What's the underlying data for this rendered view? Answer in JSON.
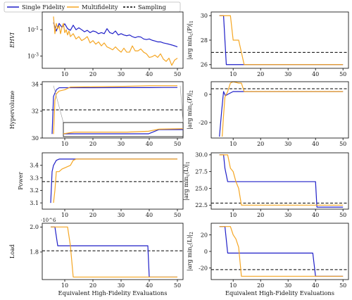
{
  "legend": {
    "entries": [
      {
        "label": "Single Fidelity",
        "color": "#1f1fc8",
        "style": "solid"
      },
      {
        "label": "Multifidelity",
        "color": "#f5a623",
        "style": "solid"
      },
      {
        "label": "Sampling",
        "color": "#000000",
        "style": "dashed"
      }
    ]
  },
  "colors": {
    "single": "#1f1fc8",
    "multi": "#f5a623",
    "sampling": "#000000"
  },
  "chart_data": [
    {
      "id": "ehvi",
      "type": "line",
      "ylabel": "EHVI",
      "yscale": "log",
      "xlim": [
        2,
        52
      ],
      "ylim": [
        0.00012,
        2.2
      ],
      "yticks": [
        {
          "v": 0.1,
          "label": "10^{-1}"
        },
        {
          "v": 0.001,
          "label": "10^{-3}"
        }
      ],
      "xticks": [
        {
          "v": 10,
          "label": "10"
        },
        {
          "v": 20,
          "label": "20"
        },
        {
          "v": 30,
          "label": "30"
        },
        {
          "v": 40,
          "label": "40"
        },
        {
          "v": 50,
          "label": "50"
        }
      ],
      "series": [
        {
          "name": "Single Fidelity",
          "color": "#1f1fc8",
          "x": [
            6,
            7,
            8,
            9,
            10,
            11,
            12,
            13,
            14,
            15,
            16,
            17,
            18,
            19,
            20,
            21,
            22,
            23,
            24,
            25,
            26,
            27,
            28,
            29,
            30,
            31,
            32,
            33,
            34,
            35,
            36,
            37,
            38,
            39,
            40,
            41,
            42,
            43,
            44,
            45,
            46,
            47,
            48,
            49,
            50
          ],
          "y": [
            0.35,
            0.08,
            0.3,
            0.15,
            0.28,
            0.12,
            0.09,
            0.22,
            0.1,
            0.14,
            0.1,
            0.07,
            0.09,
            0.06,
            0.08,
            0.07,
            0.05,
            0.06,
            0.05,
            0.12,
            0.06,
            0.05,
            0.08,
            0.04,
            0.05,
            0.04,
            0.035,
            0.04,
            0.03,
            0.025,
            0.03,
            0.028,
            0.02,
            0.018,
            0.02,
            0.016,
            0.014,
            0.012,
            0.012,
            0.01,
            0.009,
            0.008,
            0.007,
            0.006,
            0.005
          ]
        },
        {
          "name": "Multifidelity",
          "color": "#f5a623",
          "x": [
            6,
            6.5,
            7,
            7.5,
            8,
            8.5,
            9,
            9.5,
            10,
            10.5,
            11,
            11.5,
            12,
            13,
            14,
            15,
            16,
            17,
            18,
            19,
            20,
            21,
            22,
            23,
            24,
            25,
            26,
            27,
            28,
            29,
            30,
            31,
            32,
            33,
            34,
            35,
            36,
            37,
            38,
            39,
            40,
            41,
            42,
            43,
            44,
            45,
            46,
            47,
            48,
            49,
            50
          ],
          "y": [
            1.0,
            0.05,
            0.3,
            0.12,
            0.2,
            0.05,
            0.15,
            0.3,
            0.06,
            0.1,
            0.04,
            0.08,
            0.03,
            0.05,
            0.02,
            0.03,
            0.015,
            0.02,
            0.03,
            0.01,
            0.015,
            0.008,
            0.012,
            0.006,
            0.01,
            0.005,
            0.004,
            0.003,
            0.005,
            0.003,
            0.002,
            0.004,
            0.002,
            0.002,
            0.006,
            0.0025,
            0.0025,
            0.0035,
            0.002,
            0.0015,
            0.0008,
            0.0009,
            0.0012,
            0.0008,
            0.0015,
            0.0006,
            0.0004,
            0.0007,
            0.0002,
            0.0005,
            0.0007
          ]
        }
      ]
    },
    {
      "id": "pos1",
      "type": "line",
      "ylabel": "|argmin_c(P)|_1",
      "xlim": [
        2,
        52
      ],
      "ylim": [
        25.7,
        30.3
      ],
      "yticks": [
        {
          "v": 26,
          "label": "26"
        },
        {
          "v": 28,
          "label": "28"
        },
        {
          "v": 30,
          "label": "30"
        }
      ],
      "xticks": [
        {
          "v": 10,
          "label": "10"
        },
        {
          "v": 20,
          "label": "20"
        },
        {
          "v": 30,
          "label": "30"
        },
        {
          "v": 40,
          "label": "40"
        },
        {
          "v": 50,
          "label": "50"
        }
      ],
      "sampling": 27,
      "series": [
        {
          "name": "Single Fidelity",
          "color": "#1f1fc8",
          "x": [
            5,
            6.5,
            7.5,
            50
          ],
          "y": [
            30,
            30,
            26,
            26
          ]
        },
        {
          "name": "Multifidelity",
          "color": "#f5a623",
          "x": [
            5,
            9,
            10,
            11,
            12,
            13,
            14,
            50
          ],
          "y": [
            30,
            30,
            28,
            28,
            28,
            27,
            26,
            26
          ]
        }
      ]
    },
    {
      "id": "hv",
      "type": "line",
      "ylabel": "Hypervolume",
      "xlim": [
        2,
        52
      ],
      "ylim": [
        30.0,
        34.2
      ],
      "yticks": [
        {
          "v": 30,
          "label": "30"
        },
        {
          "v": 32,
          "label": "32"
        },
        {
          "v": 34,
          "label": "34"
        }
      ],
      "xticks": [
        {
          "v": 10,
          "label": "10"
        },
        {
          "v": 20,
          "label": "20"
        },
        {
          "v": 30,
          "label": "30"
        },
        {
          "v": 40,
          "label": "40"
        },
        {
          "v": 50,
          "label": "50"
        }
      ],
      "sampling": 32.1,
      "series": [
        {
          "name": "Single Fidelity",
          "color": "#1f1fc8",
          "x": [
            5.5,
            6,
            7,
            8,
            9,
            10,
            20,
            30,
            40,
            45,
            50
          ],
          "y": [
            30.3,
            33.1,
            33.6,
            33.75,
            33.75,
            33.75,
            33.75,
            33.76,
            33.76,
            33.77,
            33.77
          ]
        },
        {
          "name": "Multifidelity",
          "color": "#f5a623",
          "x": [
            6,
            6.5,
            7,
            8,
            10,
            12,
            20,
            30,
            40,
            50
          ],
          "y": [
            30.3,
            32.8,
            33.3,
            33.5,
            33.6,
            33.8,
            33.82,
            33.85,
            33.9,
            33.9
          ]
        }
      ],
      "inset": {
        "xlim": [
          6,
          51
        ],
        "single": {
          "x": [
            6,
            38,
            42,
            51
          ],
          "y": [
            0,
            0,
            0.5,
            0.5
          ]
        },
        "multi": {
          "x": [
            6,
            10,
            20,
            30,
            38,
            42,
            51
          ],
          "y": [
            0,
            0.2,
            0.2,
            0.2,
            0.3,
            0.55,
            0.6
          ]
        }
      }
    },
    {
      "id": "pos2",
      "type": "line",
      "ylabel": "|argmin_c(P)|_2",
      "xlim": [
        2,
        52
      ],
      "ylim": [
        -31,
        9
      ],
      "yticks": [
        {
          "v": 0,
          "label": "0"
        },
        {
          "v": -20,
          "label": "-20"
        }
      ],
      "xticks": [
        {
          "v": 10,
          "label": "10"
        },
        {
          "v": 20,
          "label": "20"
        },
        {
          "v": 30,
          "label": "30"
        },
        {
          "v": 40,
          "label": "40"
        },
        {
          "v": 50,
          "label": "50"
        }
      ],
      "sampling": 4,
      "series": [
        {
          "name": "Single Fidelity",
          "color": "#1f1fc8",
          "x": [
            5,
            5.8,
            6.5,
            7.2,
            8,
            9,
            10,
            50
          ],
          "y": [
            -30,
            -12,
            2,
            -1,
            0,
            1,
            2,
            2
          ]
        },
        {
          "name": "Multifidelity",
          "color": "#f5a623",
          "x": [
            6,
            6.5,
            7,
            8,
            9,
            10,
            12,
            13,
            14,
            15,
            50
          ],
          "y": [
            -30,
            -15,
            -2,
            2,
            8,
            9,
            8,
            8,
            2,
            2,
            2
          ]
        }
      ]
    },
    {
      "id": "power",
      "type": "line",
      "ylabel": "Power",
      "xlim": [
        2,
        52
      ],
      "ylim": [
        3.05,
        3.5
      ],
      "yticks": [
        {
          "v": 3.1,
          "label": "3.1"
        },
        {
          "v": 3.2,
          "label": "3.2"
        },
        {
          "v": 3.3,
          "label": "3.3"
        },
        {
          "v": 3.4,
          "label": "3.4"
        }
      ],
      "xticks": [
        {
          "v": 10,
          "label": "10"
        },
        {
          "v": 20,
          "label": "20"
        },
        {
          "v": 30,
          "label": "30"
        },
        {
          "v": 40,
          "label": "40"
        },
        {
          "v": 50,
          "label": "50"
        }
      ],
      "sampling": 3.27,
      "series": [
        {
          "name": "Single Fidelity",
          "color": "#1f1fc8",
          "x": [
            5,
            5.5,
            6,
            7,
            8,
            50
          ],
          "y": [
            3.1,
            3.35,
            3.4,
            3.44,
            3.45,
            3.45
          ]
        },
        {
          "name": "Multifidelity",
          "color": "#f5a623",
          "x": [
            6,
            6.5,
            7,
            8,
            9,
            10,
            11,
            12,
            13,
            14,
            50
          ],
          "y": [
            3.1,
            3.2,
            3.35,
            3.35,
            3.37,
            3.38,
            3.39,
            3.4,
            3.44,
            3.45,
            3.45
          ]
        }
      ]
    },
    {
      "id": "load1",
      "type": "line",
      "ylabel": "|argmin_c(L)|_1",
      "xlim": [
        2,
        52
      ],
      "ylim": [
        21.9,
        30.3
      ],
      "yticks": [
        {
          "v": 22.5,
          "label": "22.5"
        },
        {
          "v": 25,
          "label": "25.0"
        },
        {
          "v": 27.5,
          "label": "27.5"
        },
        {
          "v": 30,
          "label": "30.0"
        }
      ],
      "xticks": [
        {
          "v": 10,
          "label": "10"
        },
        {
          "v": 20,
          "label": "20"
        },
        {
          "v": 30,
          "label": "30"
        },
        {
          "v": 40,
          "label": "40"
        },
        {
          "v": 50,
          "label": "50"
        }
      ],
      "sampling": 22.8,
      "series": [
        {
          "name": "Single Fidelity",
          "color": "#1f1fc8",
          "x": [
            5,
            6.5,
            7,
            8,
            40,
            40.5,
            50
          ],
          "y": [
            30,
            30,
            28,
            26,
            26,
            22.2,
            22.2
          ]
        },
        {
          "name": "Multifidelity",
          "color": "#f5a623",
          "x": [
            5,
            8,
            9,
            10,
            11,
            12,
            13,
            50
          ],
          "y": [
            30,
            30,
            28,
            27.5,
            26,
            25,
            22.5,
            22.5
          ]
        }
      ]
    },
    {
      "id": "load",
      "type": "line",
      "ylabel": "Load",
      "yexponent": "·10^6",
      "xlim": [
        2,
        52
      ],
      "ylim": [
        1.58,
        2.03
      ],
      "yticks": [
        {
          "v": 1.8,
          "label": "1.8"
        },
        {
          "v": 2.0,
          "label": "2.0"
        }
      ],
      "xticks": [
        {
          "v": 10,
          "label": "10"
        },
        {
          "v": 20,
          "label": "20"
        },
        {
          "v": 30,
          "label": "30"
        },
        {
          "v": 40,
          "label": "40"
        },
        {
          "v": 50,
          "label": "50"
        }
      ],
      "xlabel": "Equivalent High-Fidelity Evaluations",
      "sampling": 1.81,
      "series": [
        {
          "name": "Single Fidelity",
          "color": "#1f1fc8",
          "x": [
            5,
            6.5,
            7.5,
            39.5,
            40,
            50
          ],
          "y": [
            2.0,
            2.0,
            1.85,
            1.85,
            1.6,
            1.6
          ]
        },
        {
          "name": "Multifidelity",
          "color": "#f5a623",
          "x": [
            5,
            11,
            12,
            13,
            50
          ],
          "y": [
            2.0,
            2.0,
            1.85,
            1.6,
            1.6
          ]
        }
      ]
    },
    {
      "id": "load2",
      "type": "line",
      "ylabel": "|argmin_c(L)|_2",
      "xlim": [
        2,
        52
      ],
      "ylim": [
        -34,
        34
      ],
      "yticks": [
        {
          "v": 20,
          "label": "20"
        },
        {
          "v": 0,
          "label": "0"
        },
        {
          "v": -20,
          "label": "-20"
        }
      ],
      "xticks": [
        {
          "v": 10,
          "label": "10"
        },
        {
          "v": 20,
          "label": "20"
        },
        {
          "v": 30,
          "label": "30"
        },
        {
          "v": 40,
          "label": "40"
        },
        {
          "v": 50,
          "label": "50"
        }
      ],
      "xlabel": "Equivalent High-Fidelity Evaluations",
      "sampling": -22,
      "series": [
        {
          "name": "Single Fidelity",
          "color": "#1f1fc8",
          "x": [
            5,
            7,
            8,
            39,
            40,
            50
          ],
          "y": [
            30,
            30,
            -2,
            -2,
            -30,
            -30
          ]
        },
        {
          "name": "Multifidelity",
          "color": "#f5a623",
          "x": [
            5,
            9,
            10,
            11,
            12,
            13,
            50
          ],
          "y": [
            30,
            30,
            20,
            15,
            5,
            -30,
            -30
          ]
        }
      ]
    }
  ]
}
